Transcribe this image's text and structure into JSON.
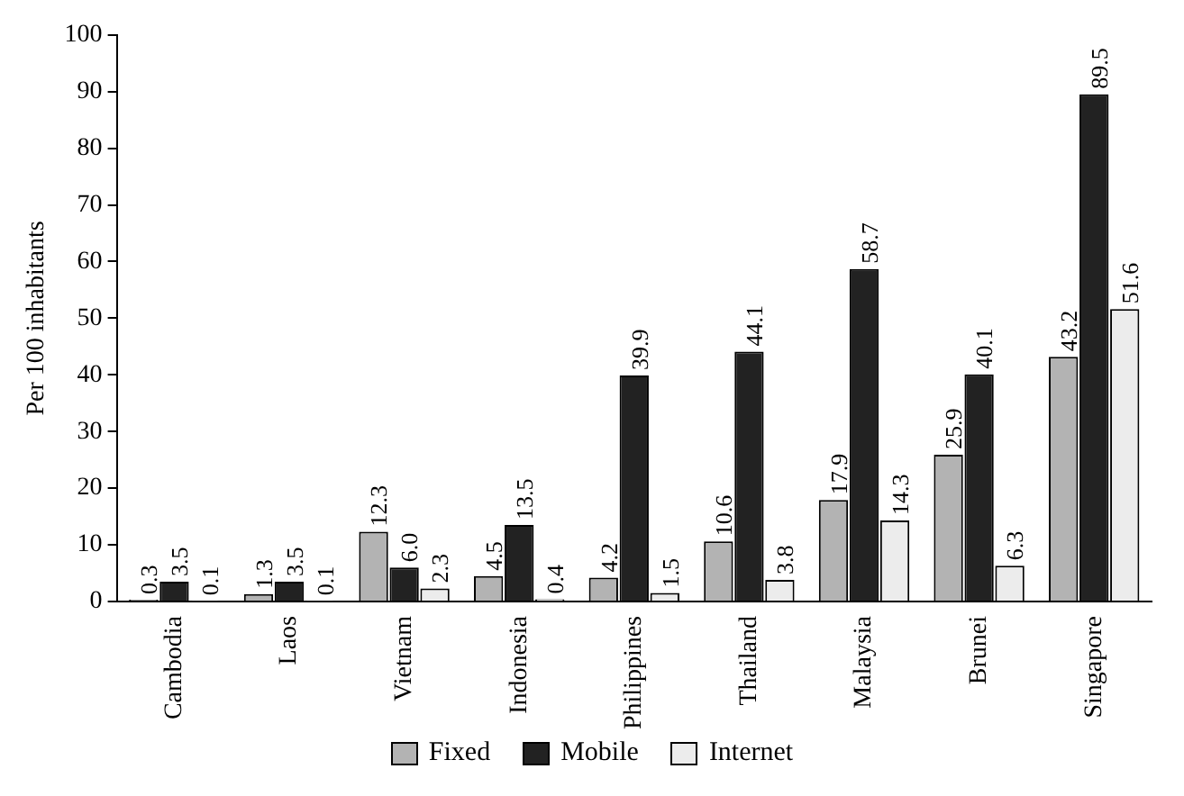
{
  "chart_data": {
    "type": "bar",
    "ylabel": "Per 100 inhabitants",
    "categories": [
      "Cambodia",
      "Laos",
      "Vietnam",
      "Indonesia",
      "Philippines",
      "Thailand",
      "Malaysia",
      "Brunei",
      "Singapore"
    ],
    "series": [
      {
        "name": "Fixed",
        "color": "#b3b3b3",
        "values": [
          0.3,
          1.3,
          12.3,
          4.5,
          4.2,
          10.6,
          17.9,
          25.9,
          43.2
        ],
        "value_labels": [
          "0.3",
          "1.3",
          "12.3",
          "4.5",
          "4.2",
          "10.6",
          "17.9",
          "25.9",
          "43.2"
        ]
      },
      {
        "name": "Mobile",
        "color": "#222222",
        "values": [
          3.5,
          3.5,
          6.0,
          13.5,
          39.9,
          44.1,
          58.7,
          40.1,
          89.5
        ],
        "value_labels": [
          "3.5",
          "3.5",
          "6.0",
          "13.5",
          "39.9",
          "44.1",
          "58.7",
          "40.1",
          "89.5"
        ]
      },
      {
        "name": "Internet",
        "color": "#ececec",
        "values": [
          0.1,
          0.1,
          2.3,
          0.4,
          1.5,
          3.8,
          14.3,
          6.3,
          51.6
        ],
        "value_labels": [
          "0.1",
          "0.1",
          "2.3",
          "0.4",
          "1.5",
          "3.8",
          "14.3",
          "6.3",
          "51.6"
        ]
      }
    ],
    "ylim": [
      0,
      100
    ],
    "yticks": [
      0,
      10,
      20,
      30,
      40,
      50,
      60,
      70,
      80,
      90,
      100
    ],
    "grid": false,
    "legend": "bottom"
  }
}
